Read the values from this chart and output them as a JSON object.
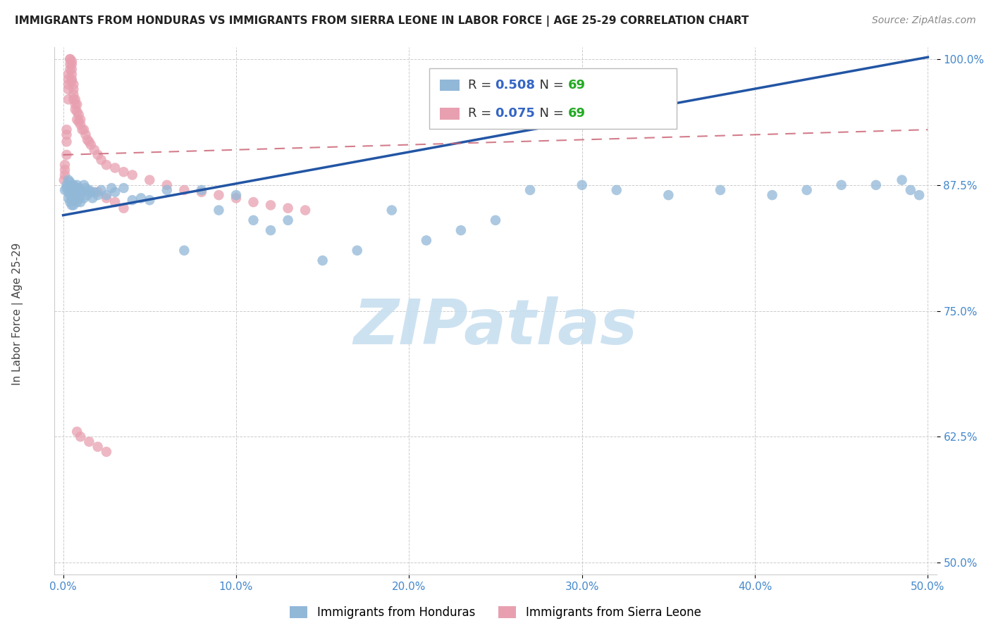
{
  "title": "IMMIGRANTS FROM HONDURAS VS IMMIGRANTS FROM SIERRA LEONE IN LABOR FORCE | AGE 25-29 CORRELATION CHART",
  "source": "Source: ZipAtlas.com",
  "ylabel": "In Labor Force | Age 25-29",
  "xlim": [
    -0.005,
    0.505
  ],
  "ylim": [
    0.488,
    1.012
  ],
  "xticks": [
    0.0,
    0.1,
    0.2,
    0.3,
    0.4,
    0.5
  ],
  "yticks": [
    0.5,
    0.625,
    0.75,
    0.875,
    1.0
  ],
  "xticklabels": [
    "0.0%",
    "10.0%",
    "20.0%",
    "30.0%",
    "40.0%",
    "50.0%"
  ],
  "yticklabels": [
    "50.0%",
    "62.5%",
    "75.0%",
    "87.5%",
    "100.0%"
  ],
  "honduras_color": "#92b8d8",
  "sierra_leone_color": "#e8a0b0",
  "honduras_line_color": "#2255a4",
  "sierra_leone_line_color": "#cc6677",
  "legend_R_color": "#3465c4",
  "legend_N_color": "#22aa22",
  "tick_color": "#4488cc",
  "watermark_color": "#c8dff0",
  "honduras_R": "0.508",
  "honduras_N": "69",
  "sierra_leone_R": "0.075",
  "sierra_leone_N": "69",
  "watermark": "ZIPatlas",
  "honduras_x": [
    0.001,
    0.002,
    0.002,
    0.003,
    0.003,
    0.003,
    0.004,
    0.004,
    0.004,
    0.005,
    0.005,
    0.005,
    0.005,
    0.006,
    0.006,
    0.006,
    0.007,
    0.007,
    0.008,
    0.008,
    0.008,
    0.009,
    0.009,
    0.01,
    0.01,
    0.011,
    0.012,
    0.012,
    0.013,
    0.014,
    0.015,
    0.016,
    0.017,
    0.018,
    0.02,
    0.022,
    0.025,
    0.028,
    0.03,
    0.035,
    0.04,
    0.045,
    0.05,
    0.06,
    0.07,
    0.08,
    0.09,
    0.1,
    0.11,
    0.12,
    0.13,
    0.15,
    0.17,
    0.19,
    0.21,
    0.23,
    0.25,
    0.27,
    0.3,
    0.32,
    0.35,
    0.38,
    0.41,
    0.43,
    0.45,
    0.47,
    0.485,
    0.49,
    0.495
  ],
  "honduras_y": [
    0.87,
    0.875,
    0.872,
    0.88,
    0.868,
    0.862,
    0.878,
    0.865,
    0.858,
    0.875,
    0.87,
    0.86,
    0.855,
    0.875,
    0.868,
    0.855,
    0.87,
    0.862,
    0.875,
    0.868,
    0.858,
    0.872,
    0.862,
    0.87,
    0.858,
    0.868,
    0.875,
    0.862,
    0.872,
    0.865,
    0.87,
    0.868,
    0.862,
    0.868,
    0.865,
    0.87,
    0.865,
    0.872,
    0.868,
    0.872,
    0.86,
    0.862,
    0.86,
    0.87,
    0.81,
    0.87,
    0.85,
    0.865,
    0.84,
    0.83,
    0.84,
    0.8,
    0.81,
    0.85,
    0.82,
    0.83,
    0.84,
    0.87,
    0.875,
    0.87,
    0.865,
    0.87,
    0.865,
    0.87,
    0.875,
    0.875,
    0.88,
    0.87,
    0.865
  ],
  "sierra_leone_x": [
    0.0005,
    0.001,
    0.001,
    0.001,
    0.002,
    0.002,
    0.002,
    0.002,
    0.003,
    0.003,
    0.003,
    0.003,
    0.003,
    0.004,
    0.004,
    0.004,
    0.004,
    0.005,
    0.005,
    0.005,
    0.005,
    0.005,
    0.005,
    0.006,
    0.006,
    0.006,
    0.006,
    0.007,
    0.007,
    0.007,
    0.008,
    0.008,
    0.008,
    0.009,
    0.009,
    0.01,
    0.01,
    0.011,
    0.012,
    0.013,
    0.014,
    0.015,
    0.016,
    0.018,
    0.02,
    0.022,
    0.025,
    0.03,
    0.035,
    0.04,
    0.05,
    0.06,
    0.07,
    0.08,
    0.09,
    0.1,
    0.11,
    0.12,
    0.13,
    0.14,
    0.02,
    0.025,
    0.03,
    0.035,
    0.008,
    0.01,
    0.015,
    0.02,
    0.025
  ],
  "sierra_leone_y": [
    0.88,
    0.89,
    0.895,
    0.885,
    0.905,
    0.918,
    0.925,
    0.93,
    0.96,
    0.97,
    0.975,
    0.98,
    0.985,
    0.99,
    0.995,
    1.0,
    1.0,
    0.998,
    0.995,
    0.99,
    0.985,
    0.98,
    0.978,
    0.975,
    0.97,
    0.965,
    0.96,
    0.96,
    0.955,
    0.95,
    0.955,
    0.948,
    0.94,
    0.945,
    0.938,
    0.94,
    0.935,
    0.93,
    0.93,
    0.925,
    0.92,
    0.918,
    0.915,
    0.91,
    0.905,
    0.9,
    0.895,
    0.892,
    0.888,
    0.885,
    0.88,
    0.875,
    0.87,
    0.868,
    0.865,
    0.862,
    0.858,
    0.855,
    0.852,
    0.85,
    0.868,
    0.862,
    0.858,
    0.852,
    0.63,
    0.625,
    0.62,
    0.615,
    0.61
  ]
}
